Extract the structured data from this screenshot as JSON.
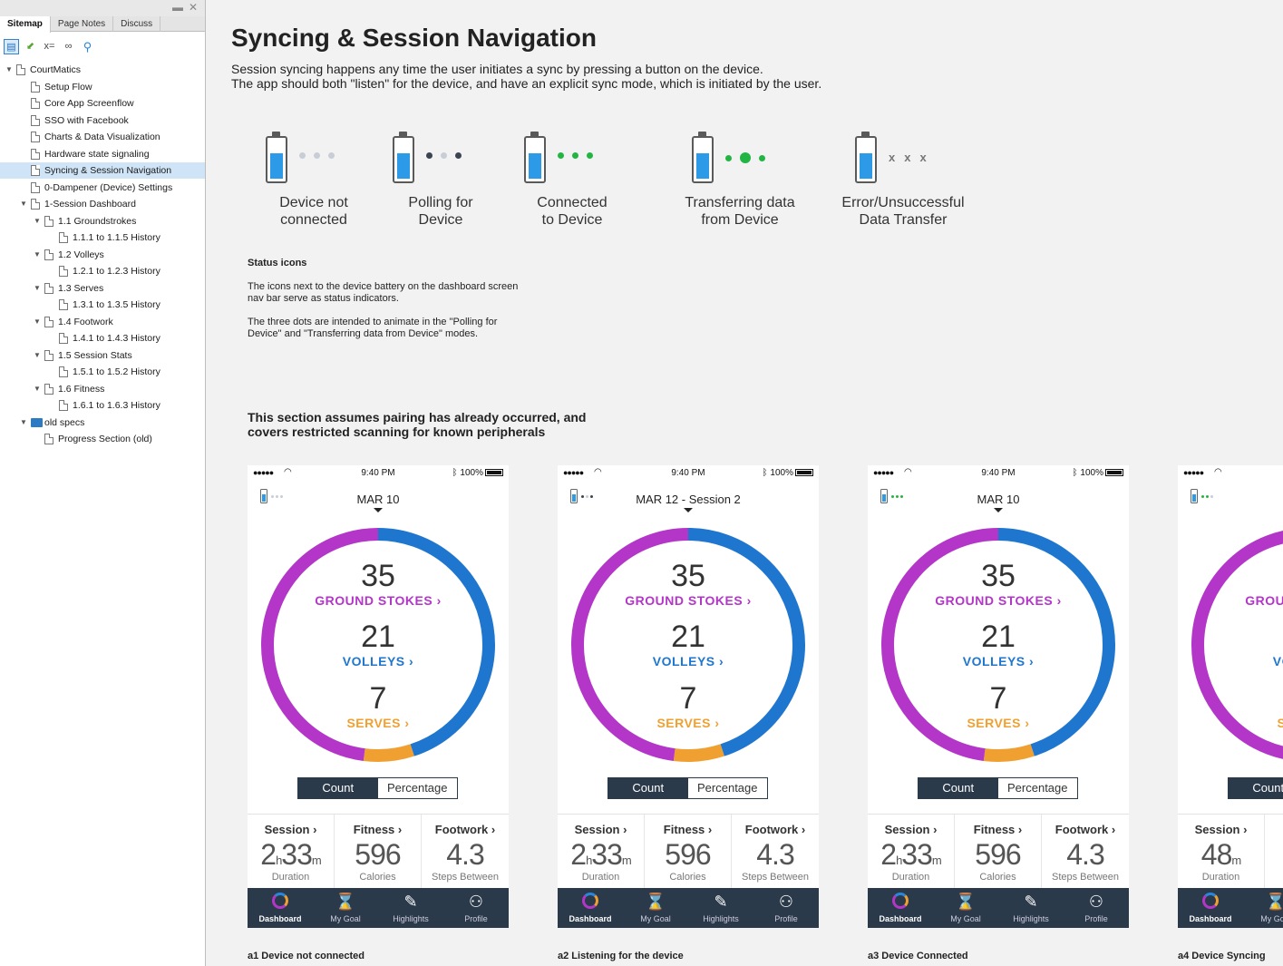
{
  "sidebar": {
    "tabs": [
      "Sitemap",
      "Page Notes",
      "Discuss"
    ],
    "tree": [
      {
        "label": "CourtMatics",
        "level": 0,
        "expanded": true,
        "type": "page"
      },
      {
        "label": "Setup Flow",
        "level": 1,
        "type": "page"
      },
      {
        "label": "Core App Screenflow",
        "level": 1,
        "type": "page"
      },
      {
        "label": "SSO with Facebook",
        "level": 1,
        "type": "page"
      },
      {
        "label": "Charts & Data Visualization",
        "level": 1,
        "type": "page"
      },
      {
        "label": "Hardware state signaling",
        "level": 1,
        "type": "page"
      },
      {
        "label": "Syncing & Session Navigation",
        "level": 1,
        "type": "page",
        "selected": true
      },
      {
        "label": "0-Dampener (Device) Settings",
        "level": 1,
        "type": "page"
      },
      {
        "label": "1-Session Dashboard",
        "level": 1,
        "expanded": true,
        "type": "page"
      },
      {
        "label": "1.1 Groundstrokes",
        "level": 2,
        "expanded": true,
        "type": "page"
      },
      {
        "label": "1.1.1 to 1.1.5 History",
        "level": 3,
        "type": "page"
      },
      {
        "label": "1.2 Volleys",
        "level": 2,
        "expanded": true,
        "type": "page"
      },
      {
        "label": "1.2.1 to 1.2.3 History",
        "level": 3,
        "type": "page"
      },
      {
        "label": "1.3 Serves",
        "level": 2,
        "expanded": true,
        "type": "page"
      },
      {
        "label": "1.3.1 to 1.3.5 History",
        "level": 3,
        "type": "page"
      },
      {
        "label": "1.4 Footwork",
        "level": 2,
        "expanded": true,
        "type": "page"
      },
      {
        "label": "1.4.1 to 1.4.3 History",
        "level": 3,
        "type": "page"
      },
      {
        "label": "1.5 Session Stats",
        "level": 2,
        "expanded": true,
        "type": "page"
      },
      {
        "label": "1.5.1 to 1.5.2 History",
        "level": 3,
        "type": "page"
      },
      {
        "label": "1.6 Fitness",
        "level": 2,
        "expanded": true,
        "type": "page"
      },
      {
        "label": "1.6.1 to 1.6.3 History",
        "level": 3,
        "type": "page"
      },
      {
        "label": "old specs",
        "level": 1,
        "expanded": true,
        "type": "folder"
      },
      {
        "label": "Progress Section (old)",
        "level": 2,
        "type": "page"
      }
    ]
  },
  "page": {
    "title": "Syncing & Session Navigation",
    "intro_line1": "Session syncing happens any time the user initiates a sync by pressing a button on the device.",
    "intro_line2": "The app should both \"listen\" for the device, and have an explicit sync mode, which is initiated by the user.",
    "statuses": [
      {
        "line1": "Device not",
        "line2": "connected",
        "dots": [
          "#c8ced6",
          "#c8ced6",
          "#c8ced6"
        ],
        "icon": "battery-dots-gray"
      },
      {
        "line1": "Polling for",
        "line2": "Device",
        "dots": [
          "#3b4450",
          "#c8ced6",
          "#3b4450"
        ],
        "icon": "battery-dots-dark"
      },
      {
        "line1": "Connected",
        "line2": "to Device",
        "dots": [
          "#22b543",
          "#22b543",
          "#22b543"
        ],
        "icon": "battery-dots-green"
      },
      {
        "line1": "Transferring data",
        "line2": "from Device",
        "dots": [
          "#22b543",
          "#22b543",
          "#22b543"
        ],
        "icon": "battery-dots-transfer"
      },
      {
        "line1": "Error/Unsuccessful",
        "line2": "Data Transfer",
        "marks": [
          "x",
          "x",
          "x"
        ],
        "icon": "battery-x-marks"
      }
    ],
    "notes_title": "Status icons",
    "note1_line1": "The icons next to the device battery on the dashboard screen",
    "note1_line2": "nav bar serve as status indicators.",
    "note2_line1": "The three dots are intended to animate in the \"Polling for",
    "note2_line2": "Device\" and \"Transferring data from Device\" modes.",
    "section_line1": "This section assumes pairing has already occurred, and",
    "section_line2": "covers restricted scanning for known peripherals"
  },
  "phones": [
    {
      "caption": "a1 Device not connected",
      "date": "MAR 10",
      "nav_dots": [
        "#c8ced6",
        "#c8ced6",
        "#c8ced6"
      ]
    },
    {
      "caption": "a2 Listening for the device",
      "date": "MAR 12 - Session 2",
      "nav_dots": [
        "#3b4450",
        "#c8ced6",
        "#3b4450"
      ]
    },
    {
      "caption": "a3 Device Connected",
      "date": "MAR 10",
      "nav_dots": [
        "#22b543",
        "#22b543",
        "#22b543"
      ]
    },
    {
      "caption": "a4 Device Syncing",
      "date": "",
      "nav_dots": [
        "#22b543",
        "#22b543",
        "#c8ced6"
      ]
    }
  ],
  "phone_common": {
    "time": "9:40 PM",
    "signal": "●●●●● ",
    "battery_pct": "100%",
    "ground_num": "35",
    "ground_lbl": "GROUND STOKES",
    "volley_num": "21",
    "volley_lbl": "VOLLEYS",
    "serve_num": "7",
    "serve_lbl": "SERVES",
    "seg_count": "Count",
    "seg_pct": "Percentage",
    "session_h": "Session",
    "session_v1": "2",
    "session_u1": "h",
    "session_v2": "33",
    "session_u2": "m",
    "session_sub": "Duration",
    "session_alt_v": "48",
    "session_alt_u": "m",
    "fitness_h": "Fitness",
    "fitness_v": "596",
    "fitness_sub": "Calories",
    "footwork_h": "Footwork",
    "footwork_v": "4.3",
    "footwork_sub": "Steps Between",
    "tabs": [
      "Dashboard",
      "My Goal",
      "Highlights",
      "Profile"
    ],
    "ground_frac": 0.57,
    "volley_frac": 0.45,
    "serve_frac": 0.07
  },
  "colors": {
    "ground": "#b336c8",
    "volley": "#1f76cf",
    "serve": "#f0a030",
    "tabbar": "#2b3a4a"
  }
}
